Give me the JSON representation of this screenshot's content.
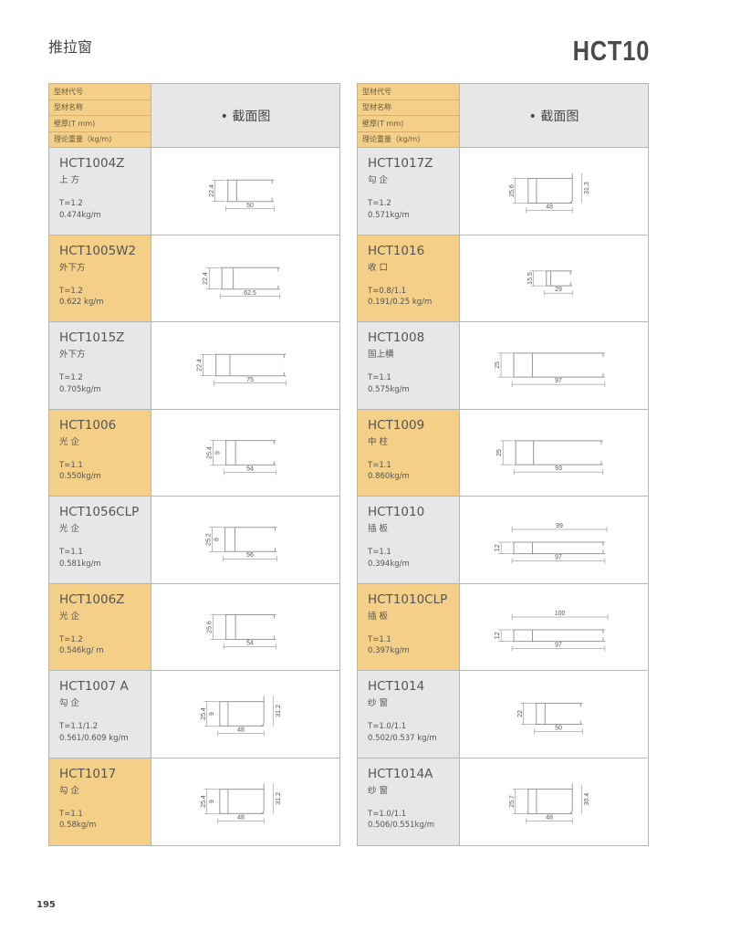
{
  "page": {
    "title": "推拉窗",
    "series": "HCT10",
    "page_number": "195"
  },
  "header": {
    "labels": [
      "型材代号",
      "型材名称",
      "壁厚(T mm)",
      "理论重量（kg/m)"
    ],
    "section": "• 截面图"
  },
  "colors": {
    "gray": "#e6e7e9",
    "yellow": "#f3cf88"
  },
  "left": [
    {
      "code": "HCT1004Z",
      "name": "上 方",
      "t": "T=1.2",
      "w": "0.474kg/m",
      "bg": "gray",
      "dims": {
        "h": "22.4",
        "w": "50"
      }
    },
    {
      "code": "HCT1005W2",
      "name": "外下方",
      "t": "T=1.2",
      "w": "0.622 kg/m",
      "bg": "yellow",
      "dims": {
        "h": "22.4",
        "w": "62.5"
      }
    },
    {
      "code": "HCT1015Z",
      "name": "外下方",
      "t": "T=1.2",
      "w": "0.705kg/m",
      "bg": "gray",
      "dims": {
        "h": "22.4",
        "w": "75"
      }
    },
    {
      "code": "HCT1006",
      "name": "光 企",
      "t": "T=1.1",
      "w": "0.550kg/m",
      "bg": "yellow",
      "dims": {
        "h": "25.4",
        "h2": "9",
        "w": "54"
      }
    },
    {
      "code": "HCT1056CLP",
      "name": "光 企",
      "t": "T=1.1",
      "w": "0.581kg/m",
      "bg": "gray",
      "dims": {
        "h": "25.2",
        "h2": "8",
        "w": "56"
      }
    },
    {
      "code": "HCT1006Z",
      "name": "光 企",
      "t": "T=1.2",
      "w": "0.546kg/ m",
      "bg": "yellow",
      "dims": {
        "h": "25.6",
        "w": "54"
      }
    },
    {
      "code": "HCT1007 A",
      "name": "勾 企",
      "t": "T=1.1/1.2",
      "w": "0.561/0.609 kg/m",
      "bg": "gray",
      "dims": {
        "h": "25.4",
        "h2": "9",
        "hr": "31.2",
        "w": "48"
      }
    },
    {
      "code": "HCT1017",
      "name": "勾 企",
      "t": "T=1.1",
      "w": "0.58kg/m",
      "bg": "yellow",
      "dims": {
        "h": "25.4",
        "h2": "9",
        "hr": "31.2",
        "w": "48"
      }
    }
  ],
  "right": [
    {
      "code": "HCT1017Z",
      "name": "勾 企",
      "t": "T=1.2",
      "w": "0.571kg/m",
      "bg": "gray",
      "dims": {
        "h": "25.6",
        "hr": "31.3",
        "w": "48"
      }
    },
    {
      "code": "HCT1016",
      "name": "收 口",
      "t": "T=0.8/1.1",
      "w": "0.191/0.25 kg/m",
      "bg": "yellow",
      "dims": {
        "h": "15.5",
        "w": "29"
      }
    },
    {
      "code": "HCT1008",
      "name": "固上横",
      "t": "T=1.1",
      "w": "0.575kg/m",
      "bg": "gray",
      "dims": {
        "h": "25",
        "w": "97"
      }
    },
    {
      "code": "HCT1009",
      "name": "中 柱",
      "t": "T=1.1",
      "w": "0.860kg/m",
      "bg": "yellow",
      "dims": {
        "h": "25",
        "w": "93"
      }
    },
    {
      "code": "HCT1010",
      "name": "插 板",
      "t": "T=1.1",
      "w": "0.394kg/m",
      "bg": "gray",
      "dims": {
        "top": "99",
        "h": "12",
        "w": "97"
      }
    },
    {
      "code": "HCT1010CLP",
      "name": "插 板",
      "t": "T=1.1",
      "w": "0.397kg/m",
      "bg": "yellow",
      "dims": {
        "top": "100",
        "h": "12",
        "w": "97"
      }
    },
    {
      "code": "HCT1014",
      "name": "纱 窗",
      "t": "T=1.0/1.1",
      "w": "0.502/0.537 kg/m",
      "bg": "gray",
      "dims": {
        "h": "22",
        "w": "50"
      }
    },
    {
      "code": "HCT1014A",
      "name": "纱 窗",
      "t": "T=1.0/1.1",
      "w": "0.506/0.551kg/m",
      "bg": "gray",
      "dims": {
        "h": "25.7",
        "hr": "30.4",
        "w": "48"
      }
    }
  ]
}
